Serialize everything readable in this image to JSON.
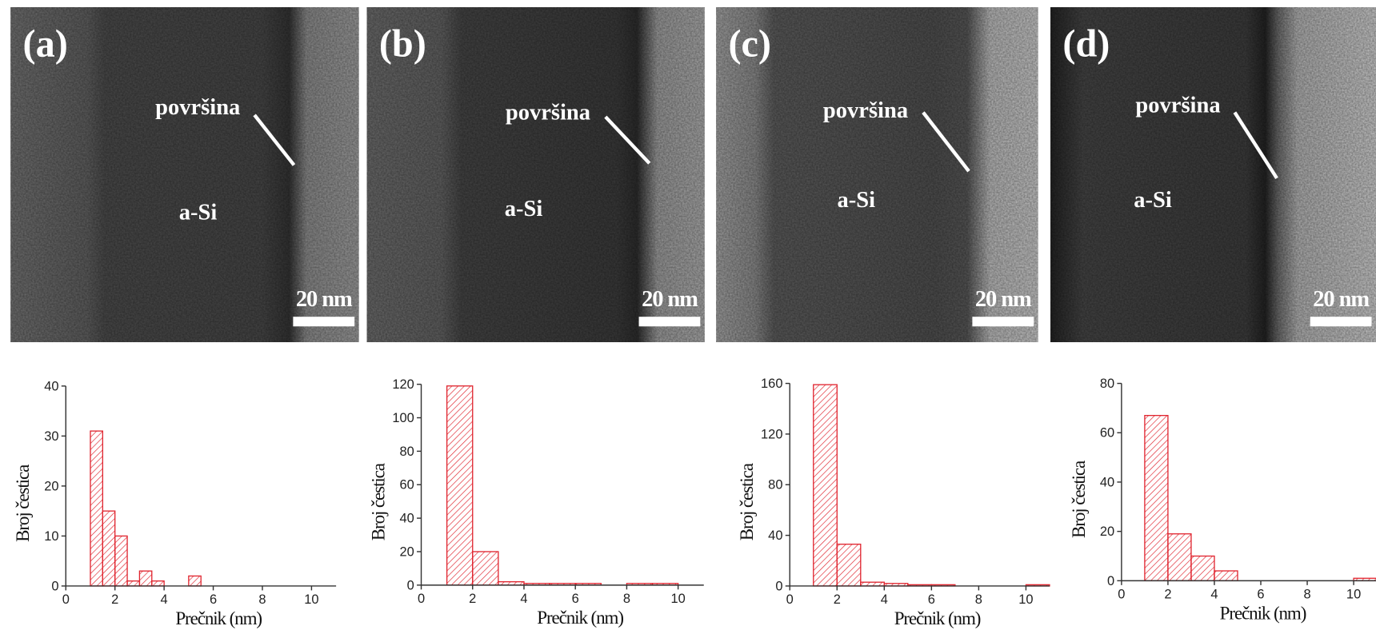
{
  "images": [
    {
      "label": "(a)",
      "surface": "površina",
      "material": "a-Si",
      "scale": "20 nm"
    },
    {
      "label": "(b)",
      "surface": "površina",
      "material": "a-Si",
      "scale": "20 nm"
    },
    {
      "label": "(c)",
      "surface": "površina",
      "material": "a-Si",
      "scale": "20 nm"
    },
    {
      "label": "(d)",
      "surface": "površina",
      "material": "a-Si",
      "scale": "20 nm"
    }
  ],
  "chart_data": [
    {
      "type": "histogram",
      "x_label": "Prečnik (nm)",
      "y_label": "Broj čestica",
      "color": "#e0242e",
      "bins": [
        1,
        1.5,
        2,
        2.5,
        3,
        3.5,
        4,
        4.5,
        5,
        5.5
      ],
      "values": [
        31,
        15,
        10,
        1,
        3,
        1,
        0,
        0,
        2
      ],
      "xlim": [
        0,
        11
      ],
      "ylim": [
        0,
        40
      ],
      "xticks": [
        0,
        2,
        4,
        6,
        8,
        10
      ],
      "yticks": [
        0,
        10,
        20,
        30,
        40
      ]
    },
    {
      "type": "histogram",
      "x_label": "Prečnik (nm)",
      "y_label": "Broj čestica",
      "color": "#e0242e",
      "bins": [
        1,
        2,
        3,
        4,
        5,
        6,
        7,
        8,
        9,
        10
      ],
      "values": [
        119,
        20,
        2,
        1,
        1,
        1,
        0,
        1,
        1
      ],
      "xlim": [
        0,
        11
      ],
      "ylim": [
        0,
        120
      ],
      "xticks": [
        0,
        2,
        4,
        6,
        8,
        10
      ],
      "yticks": [
        0,
        20,
        40,
        60,
        80,
        100,
        120
      ]
    },
    {
      "type": "histogram",
      "x_label": "Prečnik (nm)",
      "y_label": "Broj čestica",
      "color": "#e0242e",
      "bins": [
        1,
        2,
        3,
        4,
        5,
        6,
        7,
        8,
        9,
        10,
        11
      ],
      "values": [
        159,
        33,
        3,
        2,
        1,
        1,
        0,
        0,
        0,
        1
      ],
      "xlim": [
        0,
        11
      ],
      "ylim": [
        0,
        160
      ],
      "xticks": [
        0,
        2,
        4,
        6,
        8,
        10
      ],
      "yticks": [
        0,
        40,
        80,
        120,
        160
      ]
    },
    {
      "type": "histogram",
      "x_label": "Prečnik (nm)",
      "y_label": "Broj čestica",
      "color": "#e0242e",
      "bins": [
        1,
        2,
        3,
        4,
        5,
        6,
        7,
        8,
        9,
        10,
        11
      ],
      "values": [
        67,
        19,
        10,
        4,
        0,
        0,
        0,
        0,
        0,
        1
      ],
      "xlim": [
        0,
        11
      ],
      "ylim": [
        0,
        80
      ],
      "xticks": [
        0,
        2,
        4,
        6,
        8,
        10
      ],
      "yticks": [
        0,
        20,
        40,
        60,
        80
      ]
    }
  ]
}
